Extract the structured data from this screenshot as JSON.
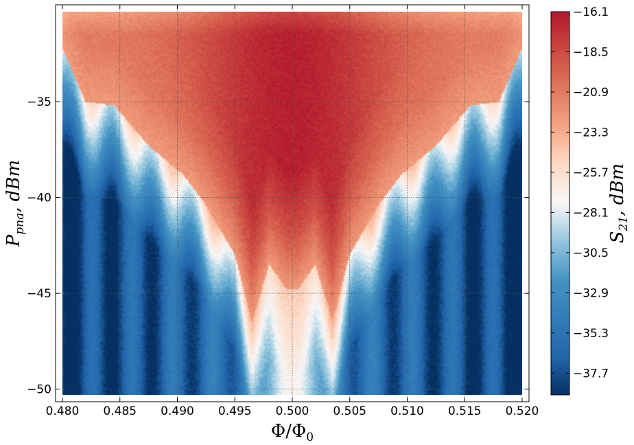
{
  "chart_data": {
    "type": "heatmap",
    "title": "",
    "xlabel": "Φ/Φ₀",
    "ylabel": "P_pna, dBm",
    "xlim": [
      0.48,
      0.52
    ],
    "ylim": [
      -50.3,
      -30.3
    ],
    "x_ticks": [
      0.48,
      0.485,
      0.49,
      0.495,
      0.5,
      0.505,
      0.51,
      0.515,
      0.52
    ],
    "x_tick_labels": [
      "0.480",
      "0.485",
      "0.490",
      "0.495",
      "0.500",
      "0.505",
      "0.510",
      "0.515",
      "0.520"
    ],
    "y_ticks": [
      -35,
      -40,
      -45,
      -50
    ],
    "y_tick_labels": [
      "−35",
      "−40",
      "−45",
      "−50"
    ],
    "grid": true,
    "colormap": "RdBu_r",
    "colorbar": {
      "label": "S21, dBm",
      "range": [
        -39.0,
        -16.1
      ],
      "ticks": [
        -16.1,
        -18.5,
        -20.9,
        -23.3,
        -25.7,
        -28.1,
        -30.5,
        -32.9,
        -35.3,
        -37.7
      ],
      "tick_labels": [
        "−16.1",
        "−18.5",
        "−20.9",
        "−23.3",
        "−25.7",
        "−28.1",
        "−30.5",
        "−32.9",
        "−35.3",
        "−37.7"
      ]
    },
    "pattern": {
      "description_free": true,
      "high_region_boundary": [
        {
          "x": 0.48,
          "y": -32.2
        },
        {
          "x": 0.482,
          "y": -35.0
        },
        {
          "x": 0.4845,
          "y": -35.2
        },
        {
          "x": 0.4875,
          "y": -37.3
        },
        {
          "x": 0.4905,
          "y": -38.8
        },
        {
          "x": 0.4925,
          "y": -40.4
        },
        {
          "x": 0.495,
          "y": -43.0
        },
        {
          "x": 0.4965,
          "y": -46.5
        },
        {
          "x": 0.498,
          "y": -43.5
        },
        {
          "x": 0.4995,
          "y": -44.8
        },
        {
          "x": 0.5005,
          "y": -44.8
        },
        {
          "x": 0.502,
          "y": -43.5
        },
        {
          "x": 0.5035,
          "y": -46.5
        },
        {
          "x": 0.505,
          "y": -43.0
        },
        {
          "x": 0.5075,
          "y": -40.4
        },
        {
          "x": 0.5095,
          "y": -38.8
        },
        {
          "x": 0.5125,
          "y": -37.3
        },
        {
          "x": 0.5155,
          "y": -35.2
        },
        {
          "x": 0.518,
          "y": -35.0
        },
        {
          "x": 0.52,
          "y": -32.2
        }
      ],
      "min_value_lower_left": -38.5,
      "max_value_center": -16.3
    }
  },
  "axis_labels": {
    "x": "Φ/Φ",
    "x_sub": "0",
    "y": "P",
    "y_sub": "pna",
    "y_rest": ", dBm",
    "cbar": "S",
    "cbar_sub": "21",
    "cbar_rest": ", dBm"
  }
}
